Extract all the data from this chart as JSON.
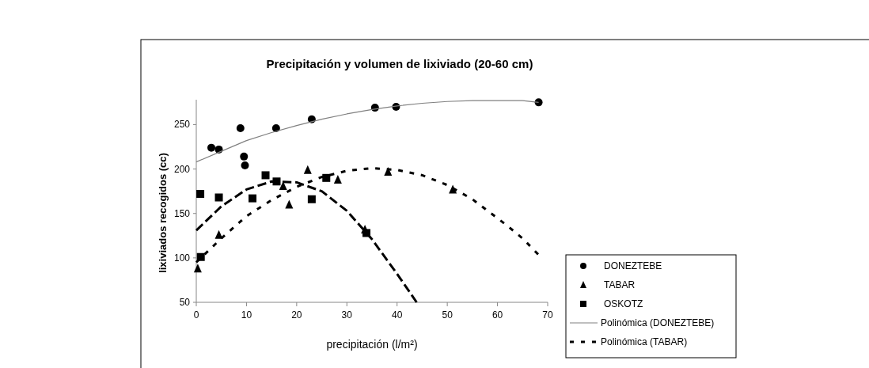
{
  "chart_data": {
    "type": "scatter",
    "title": "Precipitación y volumen de lixiviado (20-60 cm)",
    "xlabel": "precipitación (l/m²)",
    "ylabel": "lixiviados recogidos (cc)",
    "xlim": [
      0,
      70
    ],
    "xticks": [
      0,
      10,
      20,
      30,
      40,
      50,
      60,
      70
    ],
    "ylim": [
      50,
      278
    ],
    "yticks": [
      50,
      100,
      150,
      200,
      250
    ],
    "grid": false,
    "legend": "bottom right",
    "series": [
      {
        "name": "DONEZTEBE",
        "type": "scatter",
        "marker": "circle",
        "color": "#000000",
        "x": [
          3.0,
          4.5,
          8.8,
          9.5,
          9.7,
          15.9,
          23.0,
          35.6,
          39.8,
          68.2
        ],
        "values": [
          224,
          222,
          246,
          214,
          204,
          246,
          256,
          269,
          270,
          275
        ]
      },
      {
        "name": "TABAR",
        "type": "scatter",
        "marker": "triangle",
        "color": "#000000",
        "x": [
          0.3,
          4.5,
          17.3,
          18.5,
          22.2,
          28.2,
          33.6,
          38.2,
          51.1
        ],
        "values": [
          88,
          126,
          181,
          160,
          199,
          188,
          132,
          197,
          177
        ]
      },
      {
        "name": "OSKOTZ",
        "type": "scatter",
        "marker": "square",
        "color": "#000000",
        "x": [
          0.8,
          0.9,
          4.5,
          11.2,
          13.8,
          16,
          23.0,
          25.9,
          33.9
        ],
        "values": [
          172,
          101,
          168,
          167,
          193,
          186,
          166,
          190,
          128
        ]
      },
      {
        "name": "Polinómica (DONEZTEBE)",
        "type": "line",
        "marker": "none",
        "line_style": "solid",
        "color": "#808080",
        "x": [
          0,
          5,
          10,
          15,
          20,
          25,
          30,
          35,
          40,
          45,
          50,
          55,
          60,
          65,
          68.2
        ],
        "values": [
          208,
          220,
          232,
          241,
          249,
          256,
          262,
          267,
          271,
          274,
          276,
          277,
          277,
          277,
          275
        ]
      },
      {
        "name": "Polinómica (TABAR)",
        "type": "line",
        "marker": "none",
        "line_style": "dotted",
        "color": "#000000",
        "x": [
          0,
          5,
          10,
          15,
          20,
          25,
          30,
          35,
          40,
          45,
          50,
          55,
          58.3,
          62,
          65,
          68.1
        ],
        "values": [
          95,
          122,
          147,
          165,
          180,
          191,
          198,
          201,
          199,
          193,
          182,
          166,
          152,
          136,
          122,
          104
        ]
      },
      {
        "type": "line",
        "marker": "none",
        "line_style": "dashed",
        "color": "#000000",
        "x": [
          0,
          5,
          10,
          15,
          20,
          25,
          30,
          35,
          40,
          43.9
        ],
        "values": [
          131,
          158,
          177,
          186,
          185,
          175,
          153,
          121,
          82,
          50
        ]
      }
    ]
  }
}
